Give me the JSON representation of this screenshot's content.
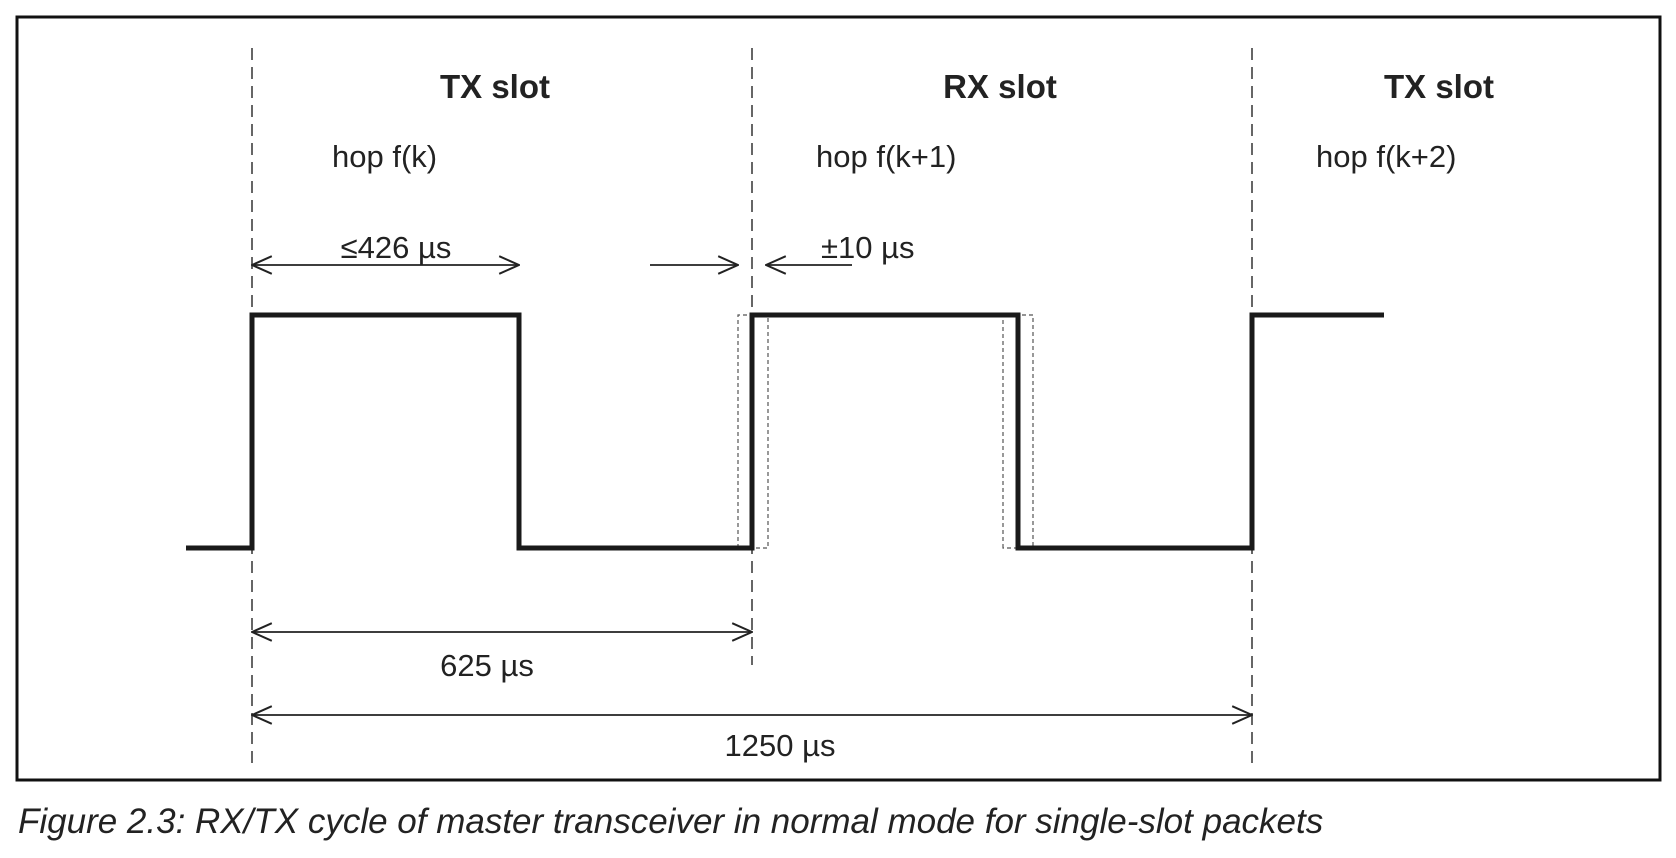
{
  "slots": [
    {
      "label": "TX slot",
      "hop": "hop f(k)"
    },
    {
      "label": "RX slot",
      "hop": "hop f(k+1)"
    },
    {
      "label": "TX slot",
      "hop": "hop f(k+2)"
    }
  ],
  "dimensions": {
    "max_tx_duration": "≤426 µs",
    "tolerance": "±10 µs",
    "slot_duration": "625 µs",
    "cycle_duration": "1250 µs"
  },
  "caption": "Figure 2.3:  RX/TX cycle of master transceiver in normal mode for single-slot packets",
  "colors": {
    "ink": "#222222",
    "background": "#ffffff"
  }
}
